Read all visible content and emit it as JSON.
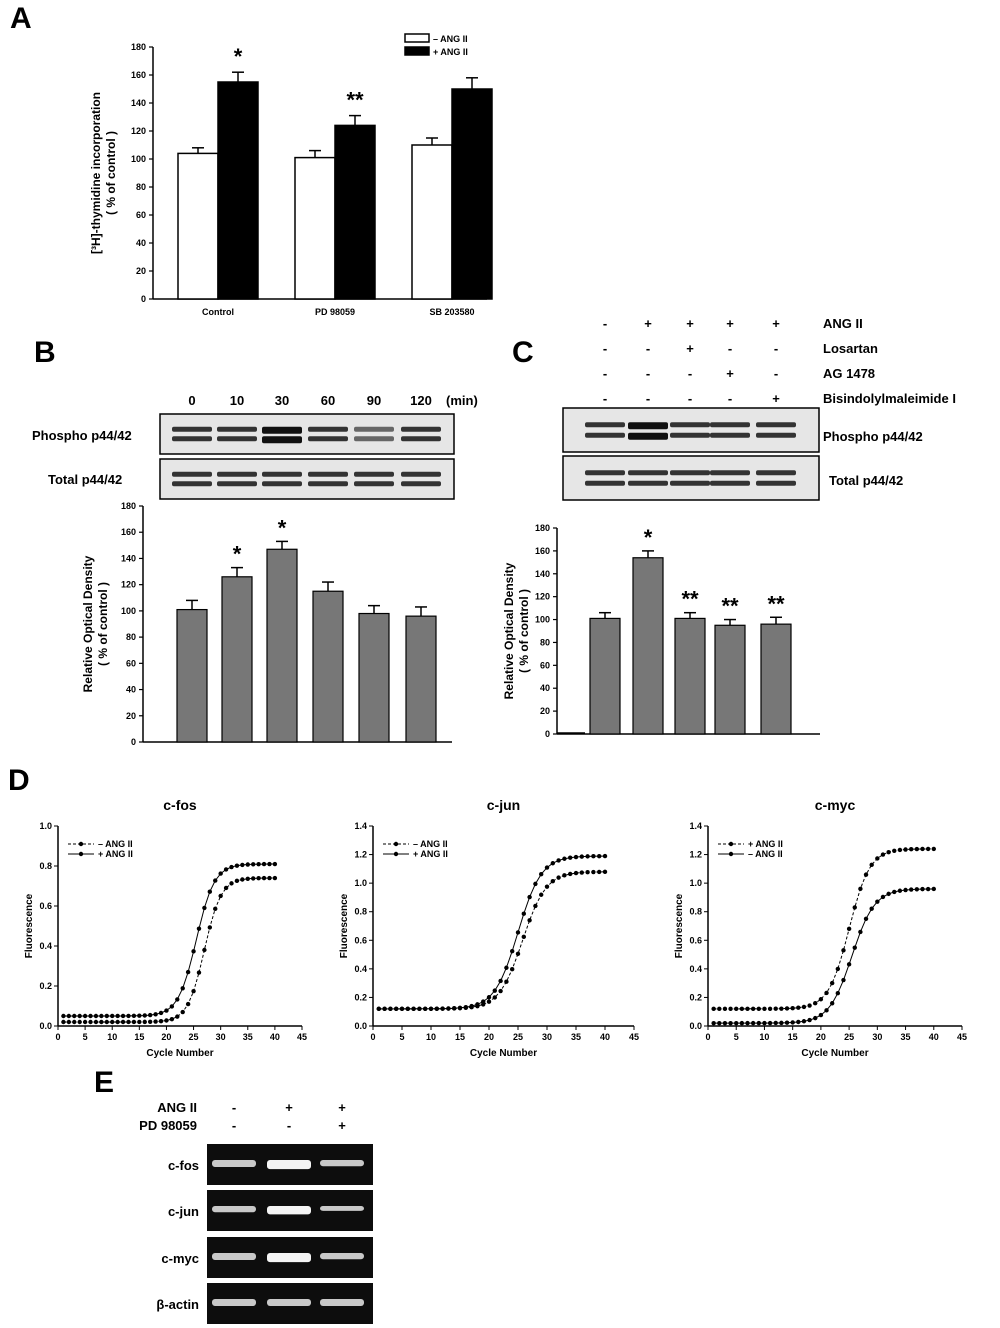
{
  "panels": {
    "A": {
      "letter": "A"
    },
    "B": {
      "letter": "B"
    },
    "C": {
      "letter": "C"
    },
    "D": {
      "letter": "D"
    },
    "E": {
      "letter": "E"
    }
  },
  "chart_data": [
    {
      "id": "A",
      "type": "bar",
      "categories": [
        "Control",
        "PD 98059",
        "SB 203580"
      ],
      "series": [
        {
          "name": "– ANG II",
          "values": [
            104,
            101,
            110
          ],
          "errors": [
            4,
            5,
            5
          ],
          "color": "#ffffff"
        },
        {
          "name": "+ ANG II",
          "values": [
            155,
            124,
            150
          ],
          "errors": [
            7,
            7,
            8
          ],
          "color": "#000000"
        }
      ],
      "annotations": [
        {
          "category": "Control",
          "series": "+ ANG II",
          "text": "*"
        },
        {
          "category": "PD 98059",
          "series": "+ ANG II",
          "text": "**"
        }
      ],
      "ylabel": "[³H]-thymidine incorporation ( % of control )",
      "ylim": [
        0,
        180
      ],
      "yticks": [
        0,
        20,
        40,
        60,
        80,
        100,
        120,
        140,
        160,
        180
      ],
      "legend": "top-right",
      "grid": false
    },
    {
      "id": "B",
      "type": "bar",
      "categories": [
        "0",
        "10",
        "30",
        "60",
        "90",
        "120"
      ],
      "header_unit": "(min)",
      "values": [
        101,
        126,
        147,
        115,
        98,
        96
      ],
      "errors": [
        7,
        7,
        6,
        7,
        6,
        7
      ],
      "color": "#777777",
      "annotations": [
        {
          "category": "10",
          "text": "*"
        },
        {
          "category": "30",
          "text": "*"
        }
      ],
      "ylabel": "Relative Optical Density ( % of control )",
      "ylim": [
        0,
        180
      ],
      "yticks": [
        0,
        20,
        40,
        60,
        80,
        100,
        120,
        140,
        160,
        180
      ],
      "blots": [
        "Phospho p44/42",
        "Total p44/42"
      ],
      "grid": false
    },
    {
      "id": "C",
      "type": "bar",
      "treatments": [
        {
          "name": "ANG II",
          "signs": [
            "-",
            "+",
            "+",
            "+",
            "+"
          ]
        },
        {
          "name": "Losartan",
          "signs": [
            "-",
            "-",
            "+",
            "-",
            "-"
          ]
        },
        {
          "name": "AG 1478",
          "signs": [
            "-",
            "-",
            "-",
            "+",
            "-"
          ]
        },
        {
          "name": "Bisindolylmaleimide I",
          "signs": [
            "-",
            "-",
            "-",
            "-",
            "+"
          ]
        }
      ],
      "values": [
        101,
        154,
        101,
        95,
        96
      ],
      "errors": [
        5,
        6,
        5,
        5,
        6
      ],
      "color": "#777777",
      "annotations": [
        "",
        "*",
        "**",
        "**",
        "**"
      ],
      "ylabel": "Relative Optical Density ( % of control )",
      "ylim": [
        0,
        180
      ],
      "yticks": [
        0,
        20,
        40,
        60,
        80,
        100,
        120,
        140,
        160,
        180
      ],
      "blots": [
        "Phospho p44/42",
        "Total p44/42"
      ],
      "grid": false
    },
    {
      "id": "D1",
      "type": "line",
      "title": "c-fos",
      "xlabel": "Cycle Number",
      "ylabel": "Fluorescence",
      "xlim": [
        0,
        45
      ],
      "ylim": [
        0,
        1.0
      ],
      "xticks": [
        0,
        5,
        10,
        15,
        20,
        25,
        30,
        35,
        40,
        45
      ],
      "yticks": [
        0,
        0.2,
        0.4,
        0.6,
        0.8,
        1.0
      ],
      "ytick_labels": [
        "0.0",
        "0.2",
        "0.4",
        "0.6",
        "0.8",
        "1.0"
      ],
      "legend": "top-left",
      "series": [
        {
          "name": "– ANG II",
          "style": "dashed",
          "base": 0.02,
          "top": 0.74,
          "mid": 27.0,
          "k": 0.65
        },
        {
          "name": "+ ANG II",
          "style": "solid",
          "base": 0.05,
          "top": 0.81,
          "mid": 25.5,
          "k": 0.6
        }
      ]
    },
    {
      "id": "D2",
      "type": "line",
      "title": "c-jun",
      "xlabel": "Cycle Number",
      "ylabel": "Fluorescence",
      "xlim": [
        0,
        45
      ],
      "ylim": [
        0,
        1.4
      ],
      "xticks": [
        0,
        5,
        10,
        15,
        20,
        25,
        30,
        35,
        40,
        45
      ],
      "yticks": [
        0,
        0.2,
        0.4,
        0.6,
        0.8,
        1.0,
        1.2,
        1.4
      ],
      "ytick_labels": [
        "0.0",
        "0.2",
        "0.4",
        "0.6",
        "0.8",
        "1.0",
        "1.2",
        "1.4"
      ],
      "legend": "top-left",
      "series": [
        {
          "name": "– ANG II",
          "style": "dashed",
          "base": 0.12,
          "top": 1.08,
          "mid": 25.8,
          "k": 0.5
        },
        {
          "name": "+ ANG II",
          "style": "solid",
          "base": 0.12,
          "top": 1.19,
          "mid": 25.0,
          "k": 0.5
        }
      ]
    },
    {
      "id": "D3",
      "type": "line",
      "title": "c-myc",
      "xlabel": "Cycle Number",
      "ylabel": "Fluorescence",
      "xlim": [
        0,
        45
      ],
      "ylim": [
        0,
        1.4
      ],
      "xticks": [
        0,
        5,
        10,
        15,
        20,
        25,
        30,
        35,
        40,
        45
      ],
      "yticks": [
        0,
        0.2,
        0.4,
        0.6,
        0.8,
        1.0,
        1.2,
        1.4
      ],
      "ytick_labels": [
        "0.0",
        "0.2",
        "0.4",
        "0.6",
        "0.8",
        "1.0",
        "1.2",
        "1.4"
      ],
      "legend": "top-left",
      "series": [
        {
          "name": "+ ANG II",
          "style": "dashed",
          "base": 0.12,
          "top": 1.24,
          "mid": 25.0,
          "k": 0.55
        },
        {
          "name": "– ANG II",
          "style": "solid",
          "base": 0.02,
          "top": 0.96,
          "mid": 25.5,
          "k": 0.5
        }
      ]
    },
    {
      "id": "E",
      "type": "table",
      "treatments": [
        {
          "name": "ANG II",
          "signs": [
            "-",
            "+",
            "+"
          ]
        },
        {
          "name": "PD 98059",
          "signs": [
            "-",
            "-",
            "+"
          ]
        }
      ],
      "rows": [
        "c-fos",
        "c-jun",
        "c-myc",
        "β-actin"
      ]
    }
  ]
}
